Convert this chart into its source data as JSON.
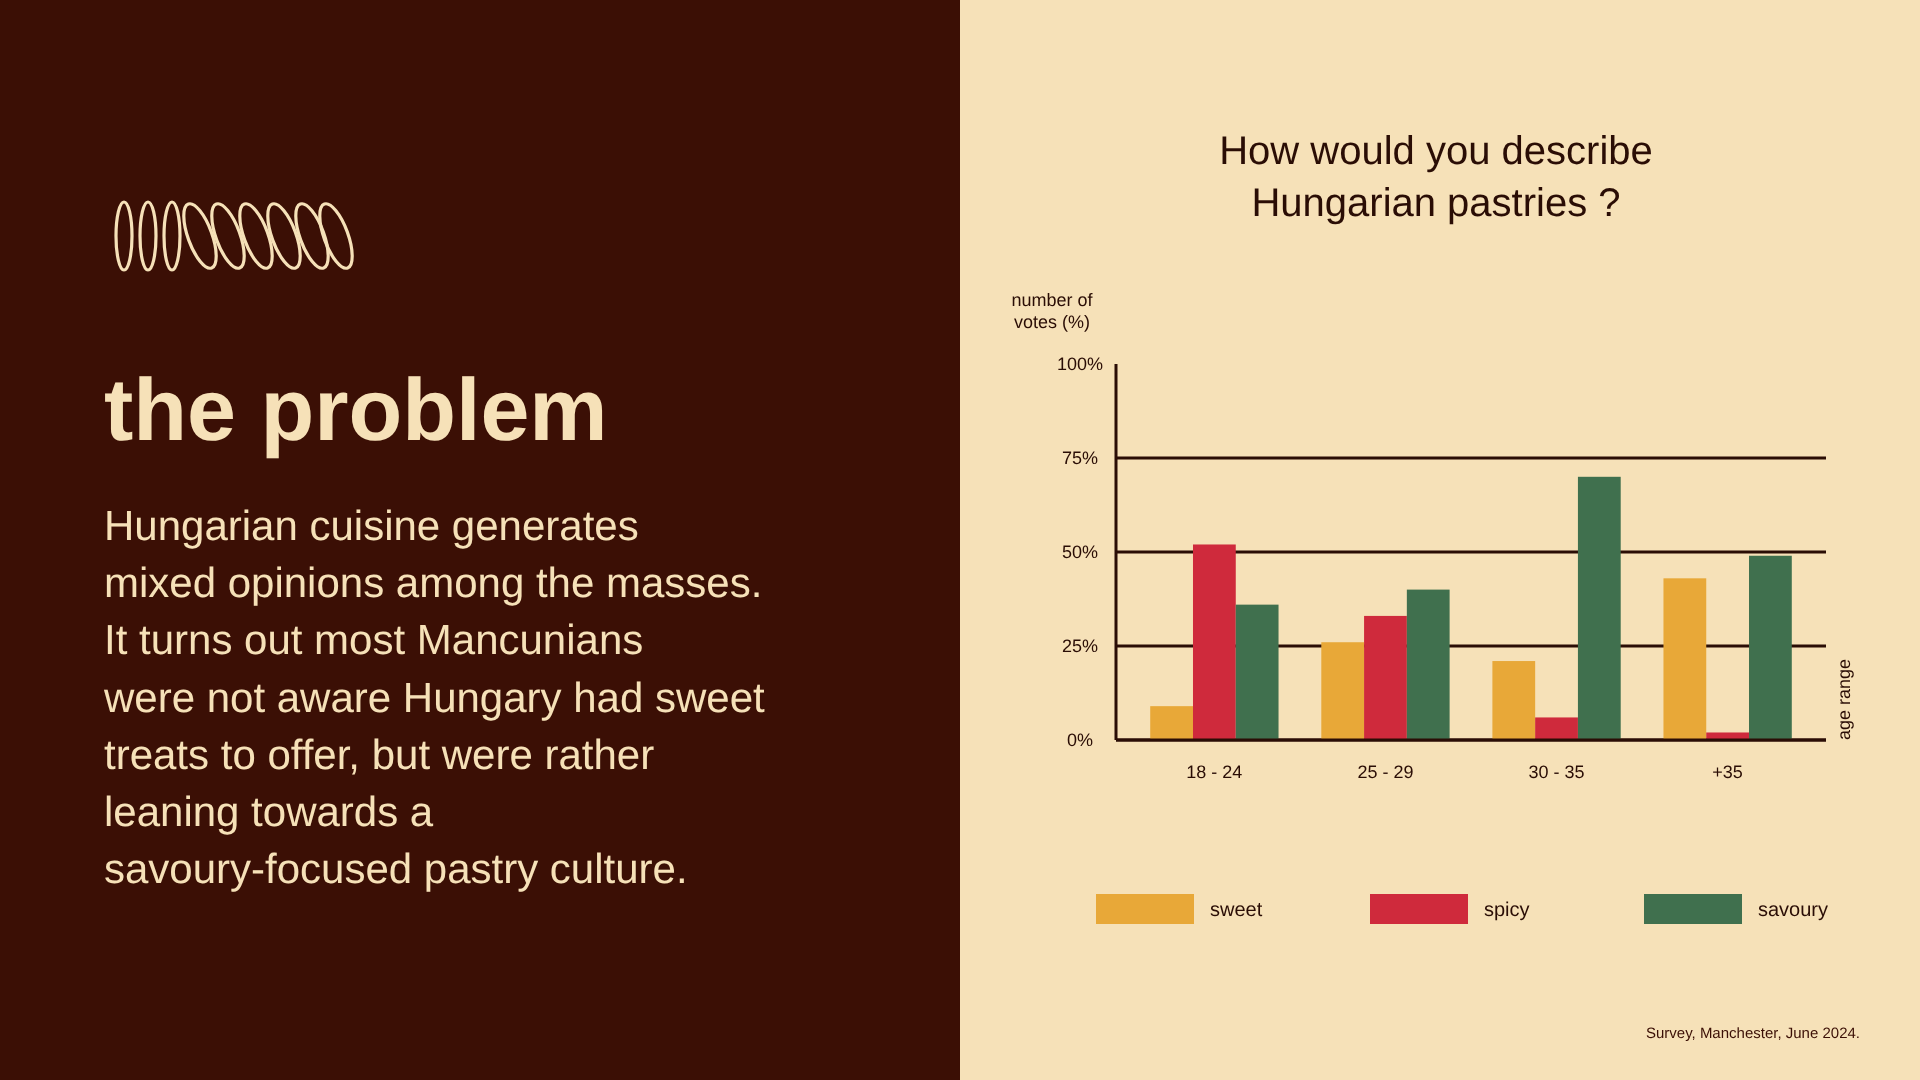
{
  "chart_data": {
    "type": "bar",
    "title": "How would you describe Hungarian pastries ?",
    "ylabel": "number of votes (%)",
    "categories": [
      "18 - 24",
      "25 - 29",
      "30 - 35",
      "+35"
    ],
    "series": [
      {
        "name": "sweet",
        "color": "#e8a838",
        "values": [
          9,
          26,
          21,
          43
        ]
      },
      {
        "name": "spicy",
        "color": "#cf2a3c",
        "values": [
          52,
          33,
          6,
          2
        ]
      },
      {
        "name": "savoury",
        "color": "#40704e",
        "values": [
          36,
          40,
          70,
          49
        ]
      }
    ],
    "ylim": [
      0,
      100
    ],
    "yticks": [
      {
        "value": 0,
        "label": "0%"
      },
      {
        "value": 25,
        "label": "25%"
      },
      {
        "value": 50,
        "label": "50%"
      },
      {
        "value": 75,
        "label": "75%"
      },
      {
        "value": 100,
        "label": "100%"
      }
    ],
    "grid": "y",
    "legend": "bottom",
    "annotations": [
      "the problem",
      "Hungarian cuisine generates mixed opinions among the masses. It turns out most Mancunians were not aware Hungary had sweet treats to offer, but were rather leaning towards a savoury-focused pastry culture.",
      "Survey, Manchester, June 2024.",
      "age range"
    ]
  }
}
